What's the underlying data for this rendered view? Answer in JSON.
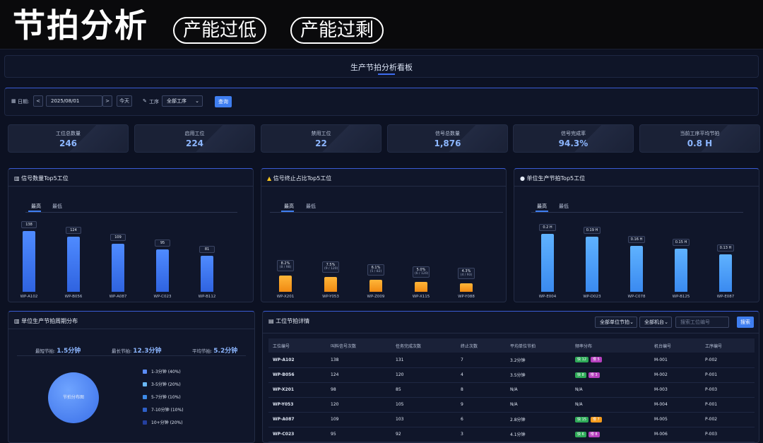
{
  "banner": {
    "title": "节拍分析",
    "pill1": "产能过低",
    "pill2": "产能过剩"
  },
  "header": {
    "title": "生产节拍分析看板"
  },
  "filter": {
    "date_label": "日期:",
    "prev": "<",
    "date_value": "2025/08/01",
    "next": ">",
    "today": "今天",
    "process_label": "工序",
    "process_value": "全部工序",
    "query": "查询"
  },
  "kpis": [
    {
      "label": "工位总数量",
      "value": "246"
    },
    {
      "label": "启用工位",
      "value": "224"
    },
    {
      "label": "禁用工位",
      "value": "22"
    },
    {
      "label": "信号总数量",
      "value": "1,876"
    },
    {
      "label": "信号完成率",
      "value": "94.3%"
    },
    {
      "label": "当前工序平均节拍",
      "value": "0.8 H"
    }
  ],
  "panel1": {
    "title": "信号数量Top5工位",
    "tab_high": "最高",
    "tab_low": "最低",
    "color": "#3f7ef0"
  },
  "panel2": {
    "title": "信号终止占比Top5工位",
    "tab_high": "最高",
    "tab_low": "最低",
    "color": "#f5a020"
  },
  "panel3": {
    "title": "单位生产节拍Top5工位",
    "tab_high": "最高",
    "tab_low": "最低",
    "color": "#4ea0fa"
  },
  "chart_data": [
    {
      "type": "bar",
      "title": "信号数量Top5工位",
      "categories": [
        "WP-A102",
        "WP-B056",
        "WP-A087",
        "WP-C023",
        "WP-B112"
      ],
      "values": [
        138,
        124,
        109,
        95,
        81
      ],
      "labels": [
        "138",
        "124",
        "109",
        "95",
        "81"
      ],
      "ylim": [
        0,
        150
      ]
    },
    {
      "type": "bar",
      "title": "信号终止占比Top5工位",
      "categories": [
        "WP-X201",
        "WP-Y053",
        "WP-Z009",
        "WP-X115",
        "WP-Y088"
      ],
      "values": [
        8.2,
        7.5,
        6.1,
        5.0,
        4.3
      ],
      "labels": [
        "8.2%",
        "7.5%",
        "6.1%",
        "5.0%",
        "4.3%"
      ],
      "sublabels": [
        "(8 / 98)",
        "(9 / 120)",
        "(5 / 82)",
        "(6 / 120)",
        "(4 / 93)"
      ],
      "ylim": [
        0,
        40
      ]
    },
    {
      "type": "bar",
      "title": "单位生产节拍Top5工位",
      "categories": [
        "WP-E004",
        "WP-D023",
        "WP-C078",
        "WP-B125",
        "WP-E087"
      ],
      "values": [
        0.2,
        0.19,
        0.16,
        0.15,
        0.13
      ],
      "labels": [
        "0.2 H",
        "0.19 H",
        "0.16 H",
        "0.15 H",
        "0.13 H"
      ],
      "ylim": [
        0,
        0.22
      ]
    }
  ],
  "dist": {
    "title": "单位生产节拍周期分布",
    "min_label": "最短节拍:",
    "min_value": "1.5分钟",
    "max_label": "最长节拍:",
    "max_value": "12.3分钟",
    "avg_label": "平均节拍:",
    "avg_value": "5.2分钟",
    "pie_label": "节拍分布图",
    "legend": [
      {
        "label": "1-3分钟 (40%)",
        "color": "#5b8cf6"
      },
      {
        "label": "3-5分钟 (20%)",
        "color": "#6ab8f5"
      },
      {
        "label": "5-7分钟 (10%)",
        "color": "#3d8ae8"
      },
      {
        "label": "7-10分钟 (10%)",
        "color": "#2e60c8"
      },
      {
        "label": "10+分钟 (20%)",
        "color": "#243f9e"
      }
    ]
  },
  "detail": {
    "title": "工位节拍详情",
    "sel_rhythm": "全部单位节拍",
    "sel_machine": "全部机台",
    "search_placeholder": "搜索工位编号",
    "search_btn": "搜索",
    "headers": [
      "工位编号",
      "叫料信号次数",
      "任务完成次数",
      "终止次数",
      "平均单位节拍",
      "频率分布",
      "机台编号",
      "工序编号"
    ],
    "rows": [
      {
        "id": "WP-A102",
        "calls": "138",
        "done": "131",
        "stop": "7",
        "avg": "3.2分钟",
        "tags": [
          {
            "t": "快 12",
            "c": "tg"
          },
          {
            "t": "慢 5",
            "c": "tp"
          }
        ],
        "dist": "",
        "machine": "M-001",
        "proc": "P-002"
      },
      {
        "id": "WP-B056",
        "calls": "124",
        "done": "120",
        "stop": "4",
        "avg": "3.5分钟",
        "tags": [
          {
            "t": "快 8",
            "c": "tg"
          },
          {
            "t": "慢 3",
            "c": "tp"
          }
        ],
        "dist": "",
        "machine": "M-002",
        "proc": "P-001"
      },
      {
        "id": "WP-X201",
        "calls": "98",
        "done": "85",
        "stop": "8",
        "avg": "N/A",
        "tags": [],
        "dist": "N/A",
        "machine": "M-003",
        "proc": "P-003"
      },
      {
        "id": "WP-Y053",
        "calls": "120",
        "done": "105",
        "stop": "9",
        "avg": "N/A",
        "tags": [],
        "dist": "N/A",
        "machine": "M-004",
        "proc": "P-001"
      },
      {
        "id": "WP-A087",
        "calls": "109",
        "done": "103",
        "stop": "6",
        "avg": "2.8分钟",
        "tags": [
          {
            "t": "快 15",
            "c": "tg"
          },
          {
            "t": "慢 7",
            "c": "to"
          }
        ],
        "dist": "",
        "machine": "M-005",
        "proc": "P-002"
      },
      {
        "id": "WP-C023",
        "calls": "95",
        "done": "92",
        "stop": "3",
        "avg": "4.1分钟",
        "tags": [
          {
            "t": "快 6",
            "c": "tg"
          },
          {
            "t": "慢 8",
            "c": "tp"
          }
        ],
        "dist": "",
        "machine": "M-006",
        "proc": "P-003"
      }
    ]
  }
}
